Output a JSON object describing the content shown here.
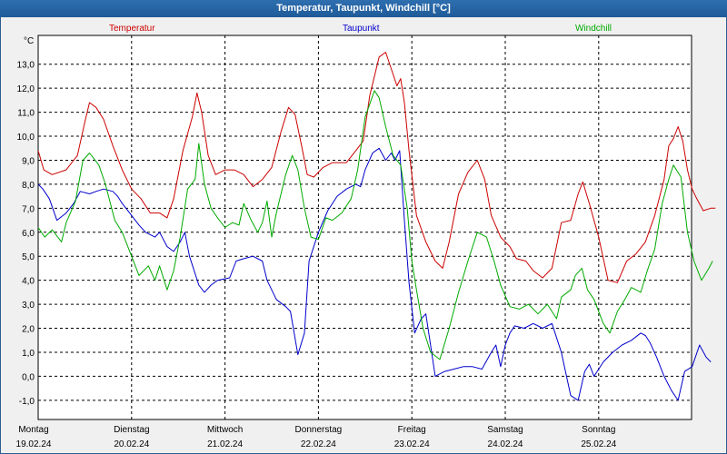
{
  "chart_data": {
    "type": "line",
    "title": "Temperatur, Taupunkt, Windchill [°C]",
    "ylabel": "°C",
    "ylim": [
      -1.8,
      14.2
    ],
    "yticks": [
      "-1,0",
      "0,0",
      "1,0",
      "2,0",
      "3,0",
      "4,0",
      "5,0",
      "6,0",
      "7,0",
      "8,0",
      "9,0",
      "10,0",
      "11,0",
      "12,0",
      "13,0"
    ],
    "ytick_values": [
      -1,
      0,
      1,
      2,
      3,
      4,
      5,
      6,
      7,
      8,
      9,
      10,
      11,
      12,
      13
    ],
    "xlim": [
      0,
      7
    ],
    "days": [
      {
        "weekday": "Montag",
        "date": "19.02.24"
      },
      {
        "weekday": "Dienstag",
        "date": "20.02.24"
      },
      {
        "weekday": "Mittwoch",
        "date": "21.02.24"
      },
      {
        "weekday": "Donnerstag",
        "date": "22.02.24"
      },
      {
        "weekday": "Freitag",
        "date": "23.02.24"
      },
      {
        "weekday": "Samstag",
        "date": "24.02.24"
      },
      {
        "weekday": "Sonntag",
        "date": "25.02.24"
      }
    ],
    "series": [
      {
        "name": "Temperatur",
        "color": "#cc0000",
        "points": [
          [
            0,
            9.4
          ],
          [
            0.06,
            8.6
          ],
          [
            0.15,
            8.4
          ],
          [
            0.3,
            8.6
          ],
          [
            0.42,
            9.2
          ],
          [
            0.5,
            10.6
          ],
          [
            0.55,
            11.4
          ],
          [
            0.62,
            11.2
          ],
          [
            0.7,
            10.7
          ],
          [
            0.8,
            9.6
          ],
          [
            0.9,
            8.6
          ],
          [
            1.0,
            7.8
          ],
          [
            1.1,
            7.4
          ],
          [
            1.2,
            6.8
          ],
          [
            1.3,
            6.8
          ],
          [
            1.38,
            6.6
          ],
          [
            1.45,
            7.4
          ],
          [
            1.55,
            9.4
          ],
          [
            1.65,
            10.8
          ],
          [
            1.7,
            11.8
          ],
          [
            1.75,
            11.0
          ],
          [
            1.82,
            9.2
          ],
          [
            1.9,
            8.4
          ],
          [
            2.0,
            8.6
          ],
          [
            2.1,
            8.6
          ],
          [
            2.2,
            8.4
          ],
          [
            2.3,
            7.9
          ],
          [
            2.4,
            8.2
          ],
          [
            2.5,
            8.7
          ],
          [
            2.6,
            10.2
          ],
          [
            2.68,
            11.2
          ],
          [
            2.75,
            10.9
          ],
          [
            2.82,
            9.6
          ],
          [
            2.88,
            8.4
          ],
          [
            2.95,
            8.3
          ],
          [
            3.05,
            8.7
          ],
          [
            3.15,
            8.9
          ],
          [
            3.3,
            8.9
          ],
          [
            3.4,
            9.4
          ],
          [
            3.48,
            9.8
          ],
          [
            3.55,
            11.7
          ],
          [
            3.65,
            13.3
          ],
          [
            3.72,
            13.5
          ],
          [
            3.78,
            12.8
          ],
          [
            3.84,
            12.1
          ],
          [
            3.88,
            12.4
          ],
          [
            3.92,
            11.4
          ],
          [
            3.97,
            9.4
          ],
          [
            4.05,
            6.7
          ],
          [
            4.15,
            5.6
          ],
          [
            4.25,
            4.8
          ],
          [
            4.33,
            4.5
          ],
          [
            4.4,
            5.6
          ],
          [
            4.5,
            7.6
          ],
          [
            4.6,
            8.5
          ],
          [
            4.7,
            9.0
          ],
          [
            4.78,
            8.2
          ],
          [
            4.85,
            6.7
          ],
          [
            4.95,
            5.8
          ],
          [
            5.05,
            5.4
          ],
          [
            5.12,
            4.9
          ],
          [
            5.22,
            4.8
          ],
          [
            5.3,
            4.4
          ],
          [
            5.4,
            4.1
          ],
          [
            5.5,
            4.5
          ],
          [
            5.6,
            6.4
          ],
          [
            5.7,
            6.5
          ],
          [
            5.78,
            7.6
          ],
          [
            5.83,
            8.1
          ],
          [
            5.9,
            7.2
          ],
          [
            6.0,
            5.8
          ],
          [
            6.1,
            4.0
          ],
          [
            6.2,
            3.9
          ],
          [
            6.3,
            4.8
          ],
          [
            6.4,
            5.1
          ],
          [
            6.5,
            5.6
          ],
          [
            6.6,
            6.7
          ],
          [
            6.7,
            8.2
          ],
          [
            6.75,
            9.6
          ],
          [
            6.8,
            9.9
          ],
          [
            6.85,
            10.4
          ],
          [
            6.9,
            9.8
          ],
          [
            6.95,
            8.6
          ],
          [
            7.0,
            7.8
          ],
          [
            7.05,
            7.4
          ],
          [
            7.12,
            6.9
          ],
          [
            7.2,
            7.0
          ],
          [
            7.25,
            7.0
          ]
        ]
      },
      {
        "name": "Taupunkt",
        "color": "#0000cc",
        "points": [
          [
            0,
            8.0
          ],
          [
            0.05,
            7.8
          ],
          [
            0.12,
            7.4
          ],
          [
            0.2,
            6.5
          ],
          [
            0.3,
            6.8
          ],
          [
            0.38,
            7.2
          ],
          [
            0.45,
            7.7
          ],
          [
            0.55,
            7.6
          ],
          [
            0.62,
            7.7
          ],
          [
            0.7,
            7.8
          ],
          [
            0.8,
            7.7
          ],
          [
            0.85,
            7.5
          ],
          [
            0.9,
            7.2
          ],
          [
            1.0,
            6.7
          ],
          [
            1.08,
            6.3
          ],
          [
            1.15,
            6.0
          ],
          [
            1.25,
            5.8
          ],
          [
            1.3,
            6.0
          ],
          [
            1.38,
            5.4
          ],
          [
            1.45,
            5.2
          ],
          [
            1.52,
            5.6
          ],
          [
            1.57,
            6.0
          ],
          [
            1.62,
            5.0
          ],
          [
            1.72,
            3.8
          ],
          [
            1.78,
            3.5
          ],
          [
            1.85,
            3.8
          ],
          [
            1.92,
            4.0
          ],
          [
            2.05,
            4.1
          ],
          [
            2.12,
            4.8
          ],
          [
            2.2,
            4.9
          ],
          [
            2.3,
            5.0
          ],
          [
            2.4,
            4.8
          ],
          [
            2.45,
            4.0
          ],
          [
            2.55,
            3.2
          ],
          [
            2.65,
            2.9
          ],
          [
            2.7,
            2.7
          ],
          [
            2.78,
            0.9
          ],
          [
            2.85,
            1.8
          ],
          [
            2.9,
            4.8
          ],
          [
            3.0,
            6.0
          ],
          [
            3.1,
            6.9
          ],
          [
            3.2,
            7.5
          ],
          [
            3.3,
            7.8
          ],
          [
            3.4,
            8.0
          ],
          [
            3.45,
            7.9
          ],
          [
            3.5,
            8.6
          ],
          [
            3.58,
            9.3
          ],
          [
            3.65,
            9.5
          ],
          [
            3.72,
            9.0
          ],
          [
            3.78,
            9.3
          ],
          [
            3.82,
            9.0
          ],
          [
            3.87,
            9.4
          ],
          [
            3.92,
            6.5
          ],
          [
            3.97,
            3.9
          ],
          [
            4.03,
            1.8
          ],
          [
            4.1,
            2.4
          ],
          [
            4.15,
            2.6
          ],
          [
            4.2,
            1.3
          ],
          [
            4.25,
            0.0
          ],
          [
            4.35,
            0.2
          ],
          [
            4.45,
            0.3
          ],
          [
            4.55,
            0.4
          ],
          [
            4.65,
            0.4
          ],
          [
            4.75,
            0.3
          ],
          [
            4.85,
            1.0
          ],
          [
            4.9,
            1.3
          ],
          [
            4.95,
            0.4
          ],
          [
            5.0,
            1.3
          ],
          [
            5.05,
            1.8
          ],
          [
            5.1,
            2.1
          ],
          [
            5.2,
            2.0
          ],
          [
            5.3,
            2.2
          ],
          [
            5.4,
            2.0
          ],
          [
            5.5,
            2.2
          ],
          [
            5.6,
            1.0
          ],
          [
            5.7,
            -0.8
          ],
          [
            5.78,
            -1.0
          ],
          [
            5.85,
            0.2
          ],
          [
            5.9,
            0.5
          ],
          [
            5.95,
            0.0
          ],
          [
            6.05,
            0.6
          ],
          [
            6.15,
            1.0
          ],
          [
            6.25,
            1.3
          ],
          [
            6.35,
            1.5
          ],
          [
            6.45,
            1.8
          ],
          [
            6.5,
            1.7
          ],
          [
            6.55,
            1.4
          ],
          [
            6.62,
            0.8
          ],
          [
            6.7,
            0.0
          ],
          [
            6.78,
            -0.6
          ],
          [
            6.85,
            -1.0
          ],
          [
            6.92,
            0.2
          ],
          [
            7.0,
            0.4
          ],
          [
            7.08,
            1.3
          ],
          [
            7.15,
            0.8
          ],
          [
            7.2,
            0.6
          ]
        ]
      },
      {
        "name": "Windchill",
        "color": "#00aa00",
        "points": [
          [
            0,
            6.2
          ],
          [
            0.07,
            5.8
          ],
          [
            0.15,
            6.1
          ],
          [
            0.25,
            5.6
          ],
          [
            0.3,
            6.4
          ],
          [
            0.4,
            7.3
          ],
          [
            0.48,
            9.0
          ],
          [
            0.55,
            9.3
          ],
          [
            0.65,
            8.8
          ],
          [
            0.72,
            8.0
          ],
          [
            0.82,
            6.5
          ],
          [
            0.9,
            6.0
          ],
          [
            1.0,
            5.0
          ],
          [
            1.08,
            4.2
          ],
          [
            1.18,
            4.6
          ],
          [
            1.25,
            4.0
          ],
          [
            1.3,
            4.6
          ],
          [
            1.38,
            3.6
          ],
          [
            1.45,
            4.4
          ],
          [
            1.52,
            5.8
          ],
          [
            1.6,
            7.8
          ],
          [
            1.68,
            8.2
          ],
          [
            1.72,
            9.7
          ],
          [
            1.78,
            8.0
          ],
          [
            1.85,
            7.0
          ],
          [
            1.92,
            6.6
          ],
          [
            2.0,
            6.2
          ],
          [
            2.08,
            6.4
          ],
          [
            2.15,
            6.3
          ],
          [
            2.2,
            7.2
          ],
          [
            2.28,
            6.5
          ],
          [
            2.35,
            6.0
          ],
          [
            2.4,
            6.4
          ],
          [
            2.45,
            7.3
          ],
          [
            2.5,
            5.8
          ],
          [
            2.55,
            6.8
          ],
          [
            2.65,
            8.4
          ],
          [
            2.72,
            9.2
          ],
          [
            2.78,
            8.6
          ],
          [
            2.85,
            7.0
          ],
          [
            2.92,
            5.8
          ],
          [
            3.0,
            5.7
          ],
          [
            3.08,
            6.6
          ],
          [
            3.15,
            6.5
          ],
          [
            3.25,
            6.8
          ],
          [
            3.35,
            7.4
          ],
          [
            3.42,
            8.6
          ],
          [
            3.5,
            10.8
          ],
          [
            3.6,
            11.9
          ],
          [
            3.65,
            11.6
          ],
          [
            3.72,
            10.4
          ],
          [
            3.8,
            9.2
          ],
          [
            3.88,
            8.8
          ],
          [
            3.95,
            7.0
          ],
          [
            4.0,
            4.8
          ],
          [
            4.05,
            3.6
          ],
          [
            4.12,
            2.0
          ],
          [
            4.2,
            1.0
          ],
          [
            4.3,
            0.7
          ],
          [
            4.4,
            2.0
          ],
          [
            4.5,
            3.5
          ],
          [
            4.6,
            4.8
          ],
          [
            4.7,
            6.0
          ],
          [
            4.8,
            5.8
          ],
          [
            4.88,
            4.8
          ],
          [
            4.95,
            3.8
          ],
          [
            5.05,
            2.9
          ],
          [
            5.15,
            2.8
          ],
          [
            5.25,
            3.0
          ],
          [
            5.35,
            2.6
          ],
          [
            5.45,
            3.0
          ],
          [
            5.55,
            2.4
          ],
          [
            5.6,
            3.3
          ],
          [
            5.7,
            3.6
          ],
          [
            5.75,
            4.2
          ],
          [
            5.82,
            4.5
          ],
          [
            5.88,
            3.6
          ],
          [
            5.95,
            3.2
          ],
          [
            6.05,
            2.2
          ],
          [
            6.12,
            1.8
          ],
          [
            6.2,
            2.7
          ],
          [
            6.28,
            3.2
          ],
          [
            6.35,
            3.7
          ],
          [
            6.45,
            3.5
          ],
          [
            6.52,
            4.4
          ],
          [
            6.6,
            5.3
          ],
          [
            6.68,
            7.2
          ],
          [
            6.75,
            8.2
          ],
          [
            6.8,
            8.8
          ],
          [
            6.88,
            8.3
          ],
          [
            6.95,
            6.0
          ],
          [
            7.02,
            4.8
          ],
          [
            7.1,
            4.0
          ],
          [
            7.18,
            4.5
          ],
          [
            7.22,
            4.8
          ]
        ]
      }
    ]
  }
}
